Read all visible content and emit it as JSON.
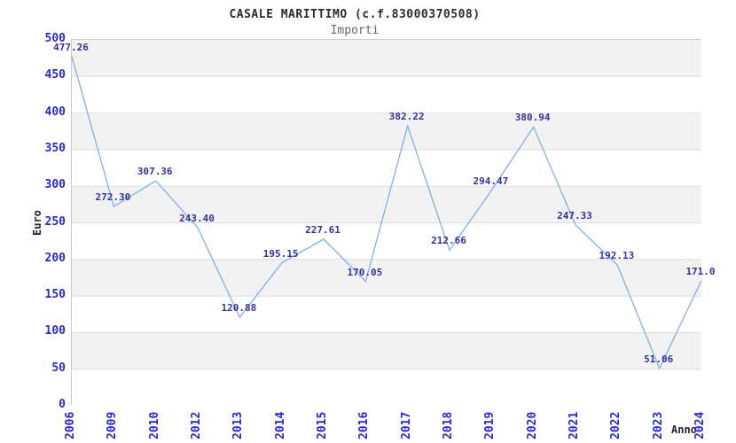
{
  "chart_data": {
    "type": "line",
    "title": "CASALE MARITTIMO (c.f.83000370508)",
    "subtitle": "Importi",
    "xlabel": "Anno",
    "ylabel": "Euro",
    "categories": [
      "2006",
      "2009",
      "2010",
      "2012",
      "2013",
      "2014",
      "2015",
      "2016",
      "2017",
      "2018",
      "2019",
      "2020",
      "2021",
      "2022",
      "2023",
      "2024"
    ],
    "values": [
      477.26,
      272.3,
      307.36,
      243.4,
      120.88,
      195.15,
      227.61,
      170.05,
      382.22,
      212.66,
      294.47,
      380.94,
      247.33,
      192.13,
      51.06,
      171.0
    ],
    "point_labels": [
      "477.26",
      "272.30",
      "307.36",
      "243.40",
      "120.88",
      "195.15",
      "227.61",
      "170.05",
      "382.22",
      "212.66",
      "294.47",
      "380.94",
      "247.33",
      "192.13",
      "51.06",
      "171.0"
    ],
    "ylim": [
      0,
      500
    ],
    "yticks": [
      0,
      50,
      100,
      150,
      200,
      250,
      300,
      350,
      400,
      450,
      500
    ],
    "grid": true,
    "banded_background": true,
    "legend_position": "none",
    "markers": "none"
  },
  "colors": {
    "line": "#7fb0e6",
    "point_label": "#333399",
    "tick_label": "#2929cc",
    "axis_label": "#222233",
    "title": "#2b2b2b",
    "subtitle": "#666666",
    "band_gray": "#f2f2f2",
    "band_white": "#ffffff",
    "gridline": "#dedede",
    "plot_border": "#c9c9c9"
  }
}
